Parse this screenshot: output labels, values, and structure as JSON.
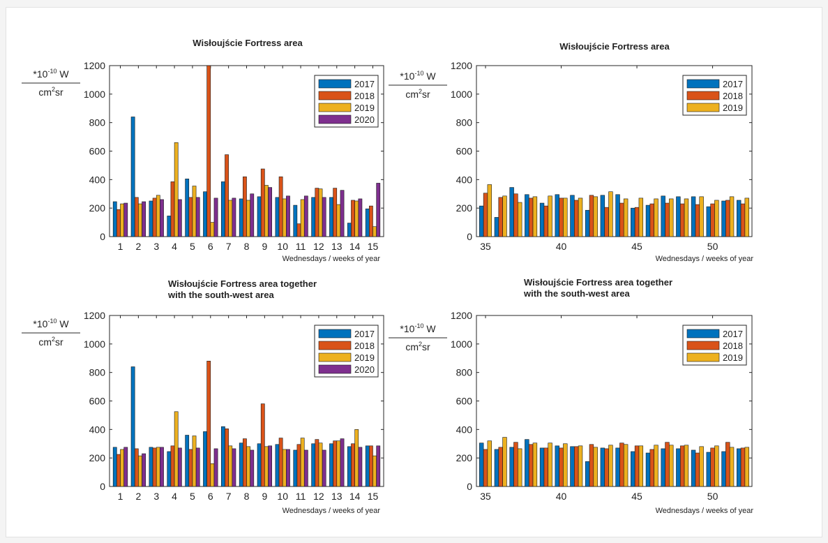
{
  "colors": {
    "2017": "#0072BD",
    "2018": "#D95319",
    "2019": "#EDB120",
    "2020": "#7E2F8E"
  },
  "y_unit": {
    "num_prefix": "*10",
    "num_exp": "-10",
    "num_suffix": " W",
    "den_main": "cm",
    "den_exp": "2",
    "den_suffix": "sr"
  },
  "chart_data": [
    {
      "type": "bar",
      "title": "Wisłoujście Fortress area",
      "xlabel": "Wednesdays / weeks of year",
      "ylim": [
        0,
        1200
      ],
      "yticks": [
        0,
        200,
        400,
        600,
        800,
        1000,
        1200
      ],
      "xticks": [
        1,
        2,
        3,
        4,
        5,
        6,
        7,
        8,
        9,
        10,
        11,
        12,
        13,
        14,
        15
      ],
      "categories": [
        1,
        2,
        3,
        4,
        5,
        6,
        7,
        8,
        9,
        10,
        11,
        12,
        13,
        14,
        15
      ],
      "legend_position": "top-right",
      "series": [
        {
          "name": "2017",
          "values": [
            245,
            840,
            250,
            145,
            405,
            315,
            385,
            265,
            280,
            275,
            220,
            275,
            275,
            95,
            195
          ]
        },
        {
          "name": "2018",
          "values": [
            190,
            275,
            270,
            385,
            275,
            1200,
            575,
            420,
            475,
            420,
            90,
            340,
            340,
            255,
            215
          ]
        },
        {
          "name": "2019",
          "values": [
            230,
            230,
            290,
            660,
            355,
            100,
            255,
            255,
            360,
            265,
            260,
            335,
            225,
            250,
            70
          ]
        },
        {
          "name": "2020",
          "values": [
            235,
            245,
            260,
            260,
            275,
            270,
            270,
            300,
            345,
            285,
            285,
            275,
            325,
            265,
            375
          ]
        }
      ]
    },
    {
      "type": "bar",
      "title": "Wisłoujście Fortress area",
      "xlabel": "Wednesdays / weeks of year",
      "ylim": [
        0,
        1200
      ],
      "yticks": [
        0,
        200,
        400,
        600,
        800,
        1000,
        1200
      ],
      "xticks": [
        35,
        40,
        45,
        50
      ],
      "categories": [
        35,
        36,
        37,
        38,
        39,
        40,
        41,
        42,
        43,
        44,
        45,
        46,
        47,
        48,
        49,
        50,
        51,
        52
      ],
      "legend_position": "top-right",
      "series": [
        {
          "name": "2017",
          "values": [
            215,
            135,
            345,
            295,
            235,
            295,
            290,
            185,
            290,
            295,
            200,
            220,
            285,
            280,
            280,
            210,
            250,
            255
          ]
        },
        {
          "name": "2018",
          "values": [
            305,
            275,
            300,
            270,
            215,
            270,
            255,
            290,
            205,
            235,
            205,
            230,
            235,
            230,
            225,
            230,
            255,
            230
          ]
        },
        {
          "name": "2019",
          "values": [
            365,
            285,
            240,
            280,
            285,
            270,
            270,
            280,
            315,
            265,
            270,
            265,
            265,
            265,
            280,
            255,
            280,
            270
          ]
        }
      ]
    },
    {
      "type": "bar",
      "title": "Wisłoujście Fortress area together\nwith the south-west area",
      "xlabel": "Wednesdays / weeks of year",
      "ylim": [
        0,
        1200
      ],
      "yticks": [
        0,
        200,
        400,
        600,
        800,
        1000,
        1200
      ],
      "xticks": [
        1,
        2,
        3,
        4,
        5,
        6,
        7,
        8,
        9,
        10,
        11,
        12,
        13,
        14,
        15
      ],
      "categories": [
        1,
        2,
        3,
        4,
        5,
        6,
        7,
        8,
        9,
        10,
        11,
        12,
        13,
        14,
        15
      ],
      "legend_position": "top-right",
      "series": [
        {
          "name": "2017",
          "values": [
            275,
            840,
            275,
            245,
            360,
            385,
            420,
            305,
            300,
            295,
            255,
            300,
            300,
            280,
            285
          ]
        },
        {
          "name": "2018",
          "values": [
            225,
            265,
            270,
            285,
            260,
            880,
            405,
            335,
            580,
            340,
            295,
            330,
            320,
            300,
            285
          ]
        },
        {
          "name": "2019",
          "values": [
            260,
            215,
            275,
            525,
            355,
            160,
            285,
            280,
            280,
            260,
            340,
            305,
            320,
            400,
            215
          ]
        },
        {
          "name": "2020",
          "values": [
            275,
            230,
            275,
            270,
            270,
            265,
            265,
            255,
            285,
            260,
            255,
            255,
            335,
            275,
            285
          ]
        }
      ]
    },
    {
      "type": "bar",
      "title": "Wisłoujście Fortress area together\nwith the south-west area",
      "xlabel": "Wednesdays / weeks of year",
      "ylim": [
        0,
        1200
      ],
      "yticks": [
        0,
        200,
        400,
        600,
        800,
        1000,
        1200
      ],
      "xticks": [
        35,
        40,
        45,
        50
      ],
      "categories": [
        35,
        36,
        37,
        38,
        39,
        40,
        41,
        42,
        43,
        44,
        45,
        46,
        47,
        48,
        49,
        50,
        51,
        52
      ],
      "legend_position": "top-right",
      "series": [
        {
          "name": "2017",
          "values": [
            305,
            260,
            275,
            330,
            270,
            285,
            280,
            175,
            270,
            270,
            245,
            235,
            265,
            265,
            255,
            240,
            245,
            265
          ]
        },
        {
          "name": "2018",
          "values": [
            260,
            275,
            310,
            295,
            270,
            270,
            280,
            295,
            265,
            305,
            285,
            260,
            310,
            285,
            235,
            270,
            310,
            270
          ]
        },
        {
          "name": "2019",
          "values": [
            320,
            345,
            265,
            305,
            305,
            300,
            285,
            275,
            290,
            295,
            285,
            290,
            290,
            290,
            280,
            285,
            275,
            275
          ]
        }
      ]
    }
  ]
}
